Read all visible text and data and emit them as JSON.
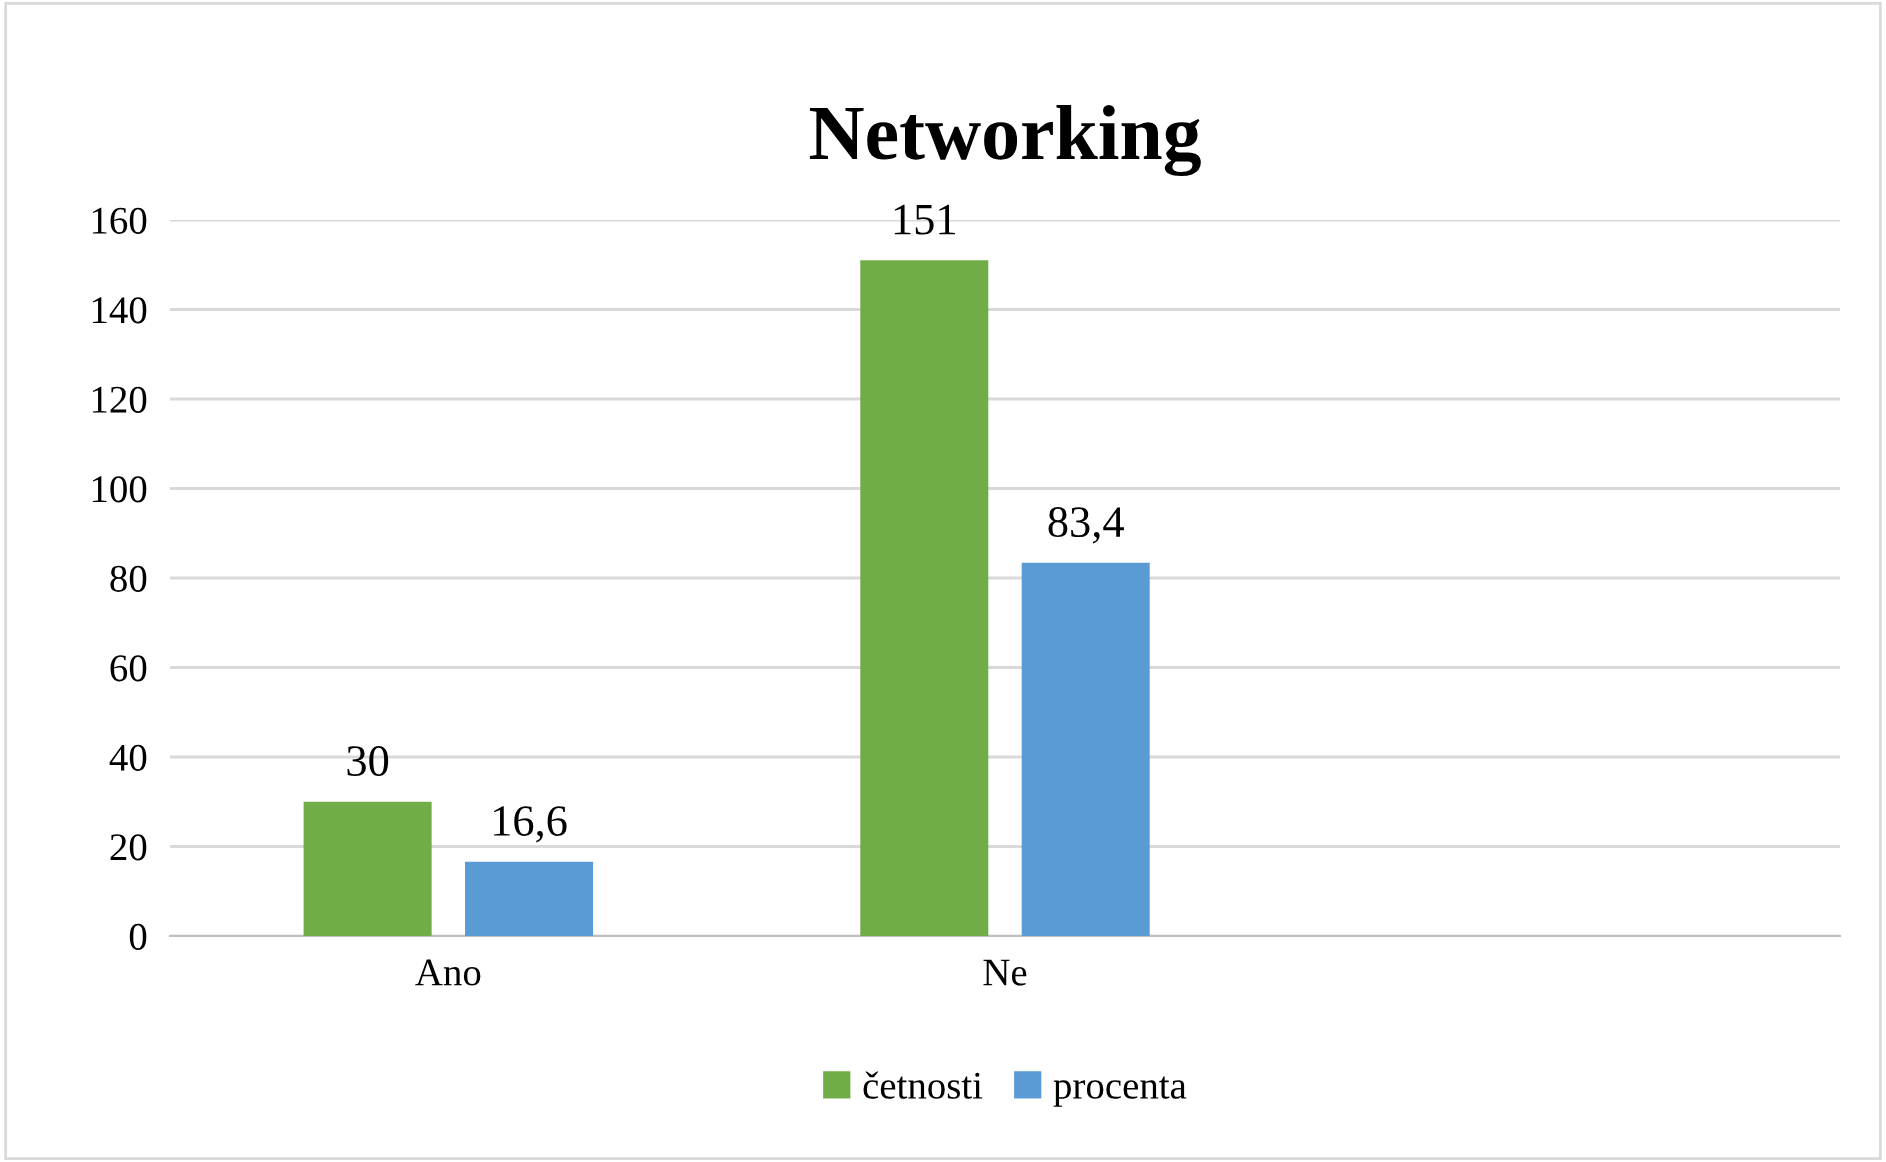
{
  "chart_data": {
    "type": "bar",
    "title": "Networking",
    "categories": [
      "Ano",
      "Ne",
      null
    ],
    "series": [
      {
        "name": "četnosti",
        "color": "#70ad47",
        "values": [
          30,
          151,
          null
        ],
        "value_labels": [
          "30",
          "151",
          null
        ]
      },
      {
        "name": "procenta",
        "color": "#5b9bd5",
        "values": [
          16.6,
          83.4,
          null
        ],
        "value_labels": [
          "16,6",
          "83,4",
          null
        ]
      }
    ],
    "ylim": [
      0,
      160
    ],
    "yticks": [
      0,
      20,
      40,
      60,
      80,
      100,
      120,
      140,
      160
    ],
    "grid": "y",
    "legend": "bottom"
  }
}
